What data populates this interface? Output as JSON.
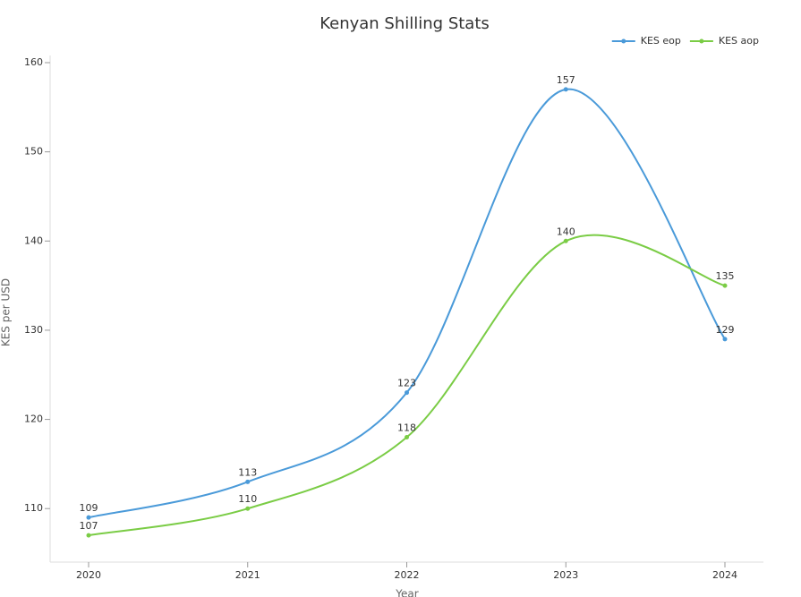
{
  "chart_data": {
    "type": "line",
    "title": "Kenyan Shilling Stats",
    "x_label": "Year",
    "y_label": "KES per USD",
    "categories": [
      "2020",
      "2021",
      "2022",
      "2023",
      "2024"
    ],
    "series": [
      {
        "name": "KES eop",
        "color": "#4a9ad9",
        "values": [
          109,
          113,
          123,
          157,
          129
        ]
      },
      {
        "name": "KES aop",
        "color": "#7acc45",
        "values": [
          107,
          110,
          118,
          140,
          135
        ]
      }
    ],
    "ylim": [
      104,
      160
    ],
    "yticks": [
      110,
      120,
      130,
      140,
      150,
      160
    ],
    "legend": "top-right",
    "smooth": true
  }
}
